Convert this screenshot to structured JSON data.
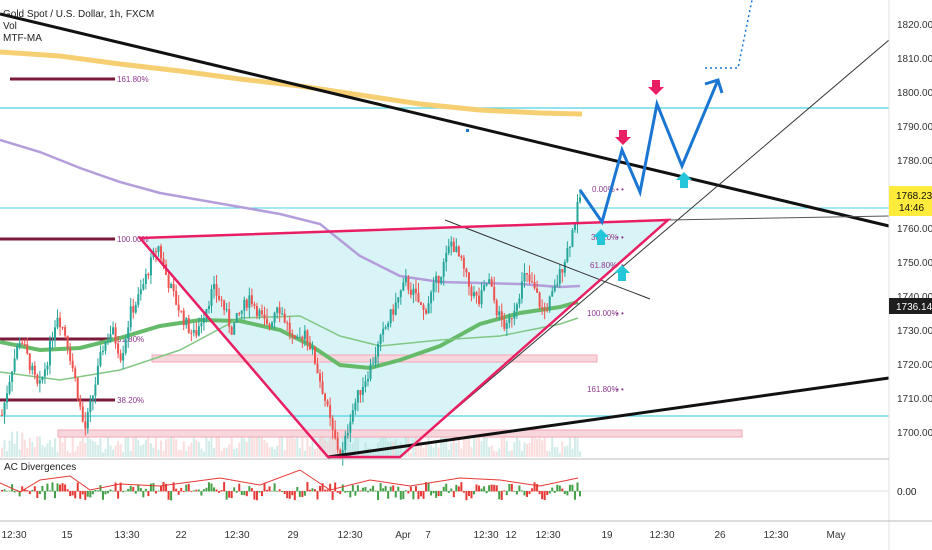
{
  "header": {
    "symbol": "Gold Spot / U.S. Dollar, 1h, FXCM",
    "indicators": [
      "Vol",
      "MTF-MA"
    ]
  },
  "subpanel": {
    "title": "AC Divergences",
    "zero_label": "0.00"
  },
  "colors": {
    "candle_up": "#26a69a",
    "candle_down": "#ef5350",
    "triangle": "#e91e63",
    "triangle_fill": "#d9f4f7",
    "forecast": "#1976d2",
    "arrow_down": "#e91e63",
    "arrow_up": "#26c6da",
    "hline": "#4dd0e1",
    "fib_level": "#7b1a3a",
    "ma_gold": "#f6cf72",
    "ma_purple": "#b39ddb",
    "ma_green": "#66bb6a",
    "trendline": "#111111"
  },
  "chart_data": {
    "type": "candlestick",
    "title": "Gold Spot / U.S. Dollar, 1h, FXCM",
    "ylim": [
      1692,
      1827
    ],
    "y_ticks": [
      1700,
      1710,
      1720,
      1730,
      1740,
      1750,
      1760,
      1770,
      1780,
      1790,
      1800,
      1810,
      1820
    ],
    "y_tick_labels": [
      "1700.00",
      "1710.00",
      "1720.00",
      "1730.00",
      "1740.00",
      "1750.00",
      "1760.00",
      "1770.00",
      "1780.00",
      "1790.00",
      "1800.00",
      "1810.00",
      "1820.00"
    ],
    "x_tick_labels": [
      "12:30",
      "15",
      "13:30",
      "22",
      "12:30",
      "29",
      "12:30",
      "Apr",
      "7",
      "12:30",
      "12",
      "12:30",
      "19",
      "12:30",
      "26",
      "12:30",
      "May"
    ],
    "price_labels": [
      {
        "text": "1768.23",
        "subtext": "14:46",
        "value": 1768.23,
        "style": "highlight"
      },
      {
        "text": "1736.14",
        "value": 1736.14,
        "style": "dark"
      }
    ],
    "fib_labels_left": [
      "161.80%",
      "100.00%",
      "61.80%",
      "38.20%"
    ],
    "fib_labels_right": [
      "0.00%",
      "38.20%",
      "61.80%",
      "100.00%",
      "161.80%"
    ],
    "horizontal_lines": [
      1793.5,
      1764.5,
      1703.5
    ],
    "price_path": [
      1705,
      1718,
      1728,
      1720,
      1712,
      1722,
      1735,
      1728,
      1715,
      1700,
      1712,
      1725,
      1730,
      1722,
      1735,
      1740,
      1748,
      1755,
      1745,
      1738,
      1732,
      1728,
      1735,
      1742,
      1738,
      1730,
      1735,
      1740,
      1735,
      1730,
      1738,
      1732,
      1725,
      1730,
      1722,
      1712,
      1700,
      1692,
      1705,
      1712,
      1718,
      1725,
      1732,
      1738,
      1744,
      1740,
      1735,
      1742,
      1748,
      1756,
      1750,
      1742,
      1738,
      1745,
      1735,
      1730,
      1738,
      1746,
      1742,
      1735,
      1740,
      1748,
      1757,
      1769
    ]
  }
}
